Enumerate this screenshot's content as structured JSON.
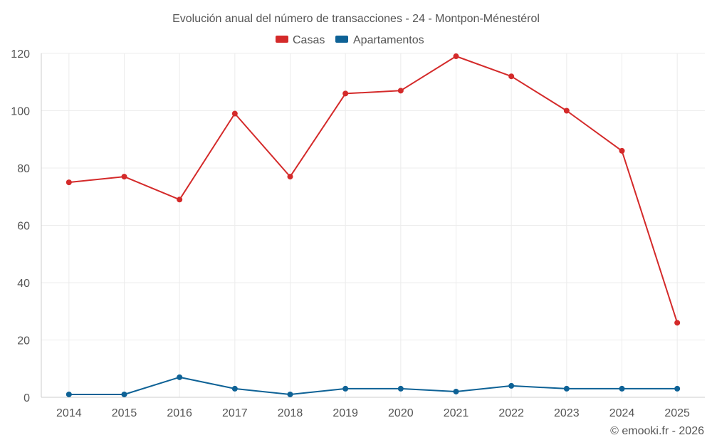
{
  "chart_data": {
    "type": "line",
    "title": "Evolución anual del número de transacciones - 24 - Montpon-Ménestérol",
    "categories": [
      "2014",
      "2015",
      "2016",
      "2017",
      "2018",
      "2019",
      "2020",
      "2021",
      "2022",
      "2023",
      "2024",
      "2025"
    ],
    "series": [
      {
        "name": "Casas",
        "color": "#d42a2a",
        "values": [
          75,
          77,
          69,
          99,
          77,
          106,
          107,
          119,
          112,
          100,
          86,
          26
        ]
      },
      {
        "name": "Apartamentos",
        "color": "#0e6296",
        "values": [
          1,
          1,
          7,
          3,
          1,
          3,
          3,
          2,
          4,
          3,
          3,
          3
        ]
      }
    ],
    "ylim": [
      0,
      120
    ],
    "yticks": [
      0,
      20,
      40,
      60,
      80,
      100,
      120
    ],
    "grid": true,
    "legend_position": "top-center",
    "xlabel": "",
    "ylabel": ""
  },
  "credit": "© emooki.fr - 2026"
}
